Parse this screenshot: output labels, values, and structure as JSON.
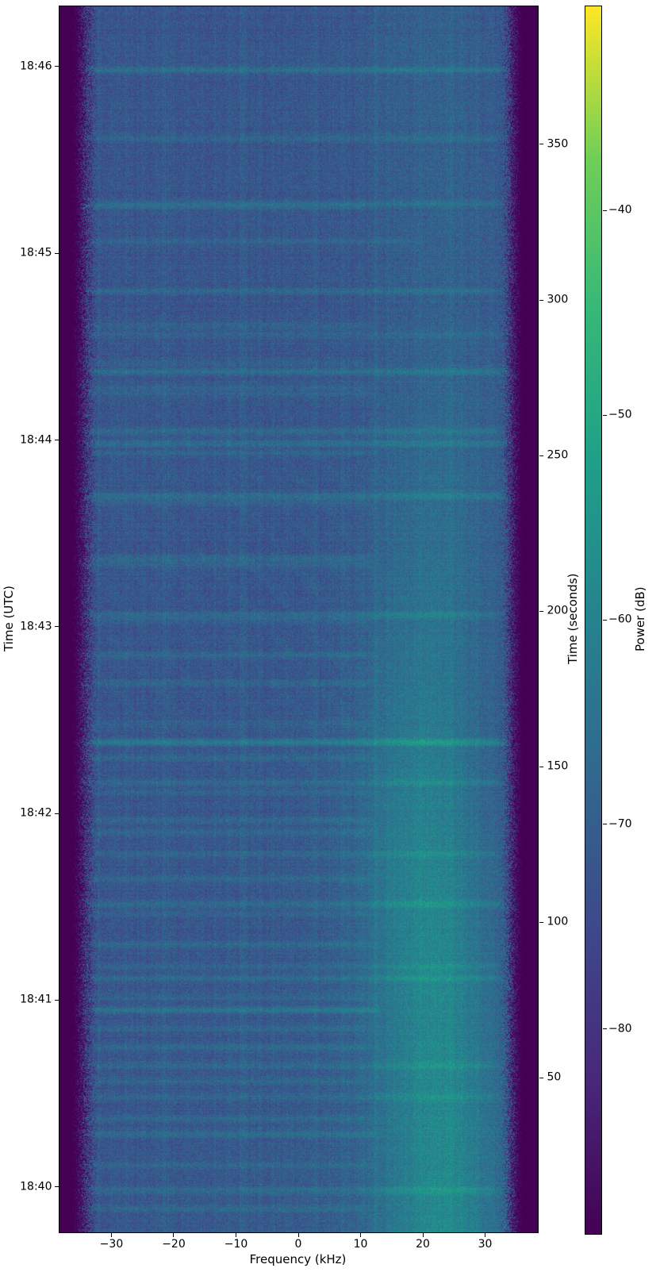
{
  "figure": {
    "background": "#ffffff",
    "text_color": "#000000",
    "spine_color": "#000000"
  },
  "chart_data": {
    "type": "heatmap",
    "title": "",
    "xlabel": "Frequency (kHz)",
    "ylabel_left": "Time (UTC)",
    "ylabel_right": "Time (seconds)",
    "colorbar_label": "Power (dB)",
    "colormap": "viridis",
    "xlim_khz": [
      -38.4,
      38.4
    ],
    "x_ticks": [
      {
        "label": "−30",
        "f": -30
      },
      {
        "label": "−20",
        "f": -20
      },
      {
        "label": "−10",
        "f": -10
      },
      {
        "label": "0",
        "f": 0
      },
      {
        "label": "10",
        "f": 10
      },
      {
        "label": "20",
        "f": 20
      },
      {
        "label": "30",
        "f": 30
      }
    ],
    "time_range_s": [
      0.5,
      394.5
    ],
    "utc_ticks": [
      {
        "label": "18:40",
        "t": 15
      },
      {
        "label": "18:41",
        "t": 75
      },
      {
        "label": "18:42",
        "t": 135
      },
      {
        "label": "18:43",
        "t": 195
      },
      {
        "label": "18:44",
        "t": 255
      },
      {
        "label": "18:45",
        "t": 315
      },
      {
        "label": "18:46",
        "t": 375
      }
    ],
    "seconds_ticks": [
      {
        "label": "50",
        "t": 50
      },
      {
        "label": "100",
        "t": 100
      },
      {
        "label": "150",
        "t": 150
      },
      {
        "label": "200",
        "t": 200
      },
      {
        "label": "250",
        "t": 250
      },
      {
        "label": "300",
        "t": 300
      },
      {
        "label": "350",
        "t": 350
      }
    ],
    "colorbar": {
      "vmin_db": -90,
      "vmax_db": -30,
      "ticks": [
        {
          "label": "−40",
          "v": -40
        },
        {
          "label": "−50",
          "v": -50
        },
        {
          "label": "−60",
          "v": -60
        },
        {
          "label": "−70",
          "v": -70
        },
        {
          "label": "−80",
          "v": -80
        }
      ]
    },
    "viridis_stops": [
      [
        0.0,
        "#440154"
      ],
      [
        0.125,
        "#482878"
      ],
      [
        0.25,
        "#3e4989"
      ],
      [
        0.375,
        "#31688e"
      ],
      [
        0.5,
        "#26828e"
      ],
      [
        0.625,
        "#1f9e89"
      ],
      [
        0.75,
        "#35b779"
      ],
      [
        0.875,
        "#6ece58"
      ],
      [
        1.0,
        "#fde725"
      ]
    ],
    "noise_model": {
      "seed": 1337,
      "floor_db": -71.8,
      "dark_db": -90,
      "speckle_db": 4.8,
      "row_noise_db": 1.1,
      "col_noise_db": 1.0,
      "left_edge_khz": -35.6,
      "left_edge_width_khz": 3.0,
      "right_edge_khz": 35.3,
      "right_edge_width_khz": 2.6,
      "band": {
        "center_khz": 21.5,
        "center_wobble_khz": 1.2,
        "sigma_khz": 7.0,
        "max_boost_db": 13,
        "fade_start_s": 100,
        "fade_span_s": 250,
        "min_factor": 0.22
      },
      "center_glow": {
        "center_khz": 5,
        "sigma_khz": 20,
        "boost_db": 1.2,
        "fade_end_s": 210
      },
      "carriers": [
        {
          "f": -21.5,
          "s": 1.8
        },
        {
          "f": -9.0,
          "s": 1.5
        },
        {
          "f": 2.5,
          "s": 1.6
        },
        {
          "f": 7.0,
          "s": 1.4
        },
        {
          "f": 12.5,
          "s": 1.5
        },
        {
          "f": 24.5,
          "s": 1.6
        }
      ],
      "diag": {
        "t0": 140,
        "t1": 268,
        "fmax_khz": 12,
        "amp_db": 1.0
      },
      "horizontal_lines": [
        {
          "t": 374,
          "s": 6,
          "fmax": 34
        },
        {
          "t": 352,
          "s": 4,
          "fmax": 33
        },
        {
          "t": 331,
          "s": 4.5,
          "fmax": 33
        },
        {
          "t": 330,
          "s": 3,
          "fmax": 12
        },
        {
          "t": 319,
          "s": 4,
          "fmax": 20
        },
        {
          "t": 303,
          "s": 4.5,
          "fmax": 33
        },
        {
          "t": 292,
          "s": 3,
          "fmax": 12
        },
        {
          "t": 289,
          "s": 3.5,
          "fmax": 33
        },
        {
          "t": 280,
          "s": 3,
          "fmax": 12
        },
        {
          "t": 277,
          "s": 5.5,
          "fmax": 34
        },
        {
          "t": 272,
          "s": 3,
          "fmax": 12
        },
        {
          "t": 270,
          "s": 3,
          "fmax": 12
        },
        {
          "t": 258,
          "s": 4,
          "fmax": 33
        },
        {
          "t": 254,
          "s": 5.5,
          "fmax": 34
        },
        {
          "t": 251,
          "s": 3,
          "fmax": 12
        },
        {
          "t": 237,
          "s": 5.5,
          "fmax": 34
        },
        {
          "t": 235,
          "s": 3,
          "fmax": 12
        },
        {
          "t": 217,
          "s": 4,
          "fmax": 12
        },
        {
          "t": 215,
          "s": 3,
          "fmax": 12
        },
        {
          "t": 199,
          "s": 4.5,
          "fmax": 33
        },
        {
          "t": 197,
          "s": 3,
          "fmax": 12
        },
        {
          "t": 186,
          "s": 4,
          "fmax": 12
        },
        {
          "t": 177,
          "s": 3.5,
          "fmax": 12
        },
        {
          "t": 164,
          "s": 3,
          "fmax": 12
        },
        {
          "t": 158,
          "s": 9,
          "fmax": 34
        },
        {
          "t": 153,
          "s": 4,
          "fmax": 12
        },
        {
          "t": 145,
          "s": 4.5,
          "fmax": 33
        },
        {
          "t": 142,
          "s": 3,
          "fmax": 12
        },
        {
          "t": 133,
          "s": 4,
          "fmax": 12
        },
        {
          "t": 129,
          "s": 3.5,
          "fmax": 12
        },
        {
          "t": 122,
          "s": 4,
          "fmax": 33
        },
        {
          "t": 114,
          "s": 3.5,
          "fmax": 12
        },
        {
          "t": 106,
          "s": 4.5,
          "fmax": 34
        },
        {
          "t": 103,
          "s": 3,
          "fmax": 12
        },
        {
          "t": 93,
          "s": 4,
          "fmax": 12
        },
        {
          "t": 86,
          "s": 3.5,
          "fmax": 33
        },
        {
          "t": 82,
          "s": 4.5,
          "fmax": 33
        },
        {
          "t": 76,
          "s": 3,
          "fmax": 12
        },
        {
          "t": 72,
          "s": 7,
          "fmax": 13
        },
        {
          "t": 66,
          "s": 3.5,
          "fmax": 12
        },
        {
          "t": 60,
          "s": 4,
          "fmax": 12
        },
        {
          "t": 54,
          "s": 4.5,
          "fmax": 33
        },
        {
          "t": 49,
          "s": 3.5,
          "fmax": 12
        },
        {
          "t": 44,
          "s": 4,
          "fmax": 33
        },
        {
          "t": 37,
          "s": 3.5,
          "fmax": 12
        },
        {
          "t": 32,
          "s": 5,
          "fmax": 13
        },
        {
          "t": 22,
          "s": 4,
          "fmax": 12
        },
        {
          "t": 14,
          "s": 4.5,
          "fmax": 33
        },
        {
          "t": 8,
          "s": 4,
          "fmax": 12
        }
      ]
    }
  }
}
